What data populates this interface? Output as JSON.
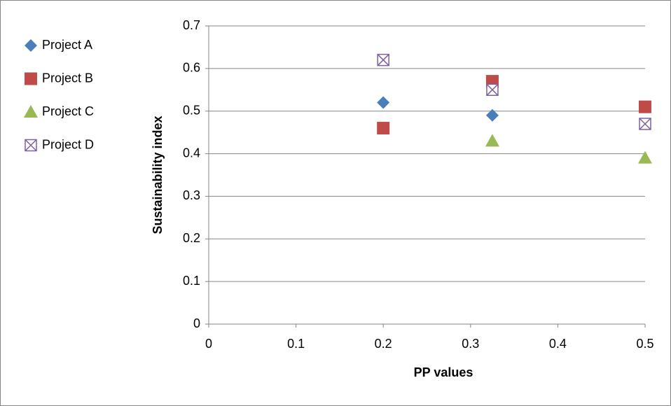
{
  "chart_data": {
    "type": "scatter",
    "x_label": "PP values",
    "y_label": "Sustainability index",
    "series": [
      {
        "name": "Project A",
        "color": "#4a7ebb",
        "marker": "diamond",
        "x": [
          0.2,
          0.325
        ],
        "values": [
          0.52,
          0.49
        ]
      },
      {
        "name": "Project B",
        "color": "#be4b48",
        "marker": "square",
        "x": [
          0.2,
          0.325,
          0.5
        ],
        "values": [
          0.46,
          0.57,
          0.51
        ]
      },
      {
        "name": "Project C",
        "color": "#98b954",
        "marker": "triangle",
        "x": [
          0.325,
          0.5
        ],
        "values": [
          0.43,
          0.39
        ]
      },
      {
        "name": "Project D",
        "color": "#7d60a0",
        "marker": "x-square",
        "x": [
          0.2,
          0.325,
          0.5
        ],
        "values": [
          0.62,
          0.55,
          0.47
        ]
      }
    ],
    "xlim": [
      0,
      0.5
    ],
    "xticks": [
      0,
      0.1,
      0.2,
      0.3,
      0.4,
      0.5
    ],
    "ylim": [
      0,
      0.7
    ],
    "yticks": [
      0,
      0.1,
      0.2,
      0.3,
      0.4,
      0.5,
      0.6,
      0.7
    ],
    "grid": true,
    "legend": "left"
  }
}
